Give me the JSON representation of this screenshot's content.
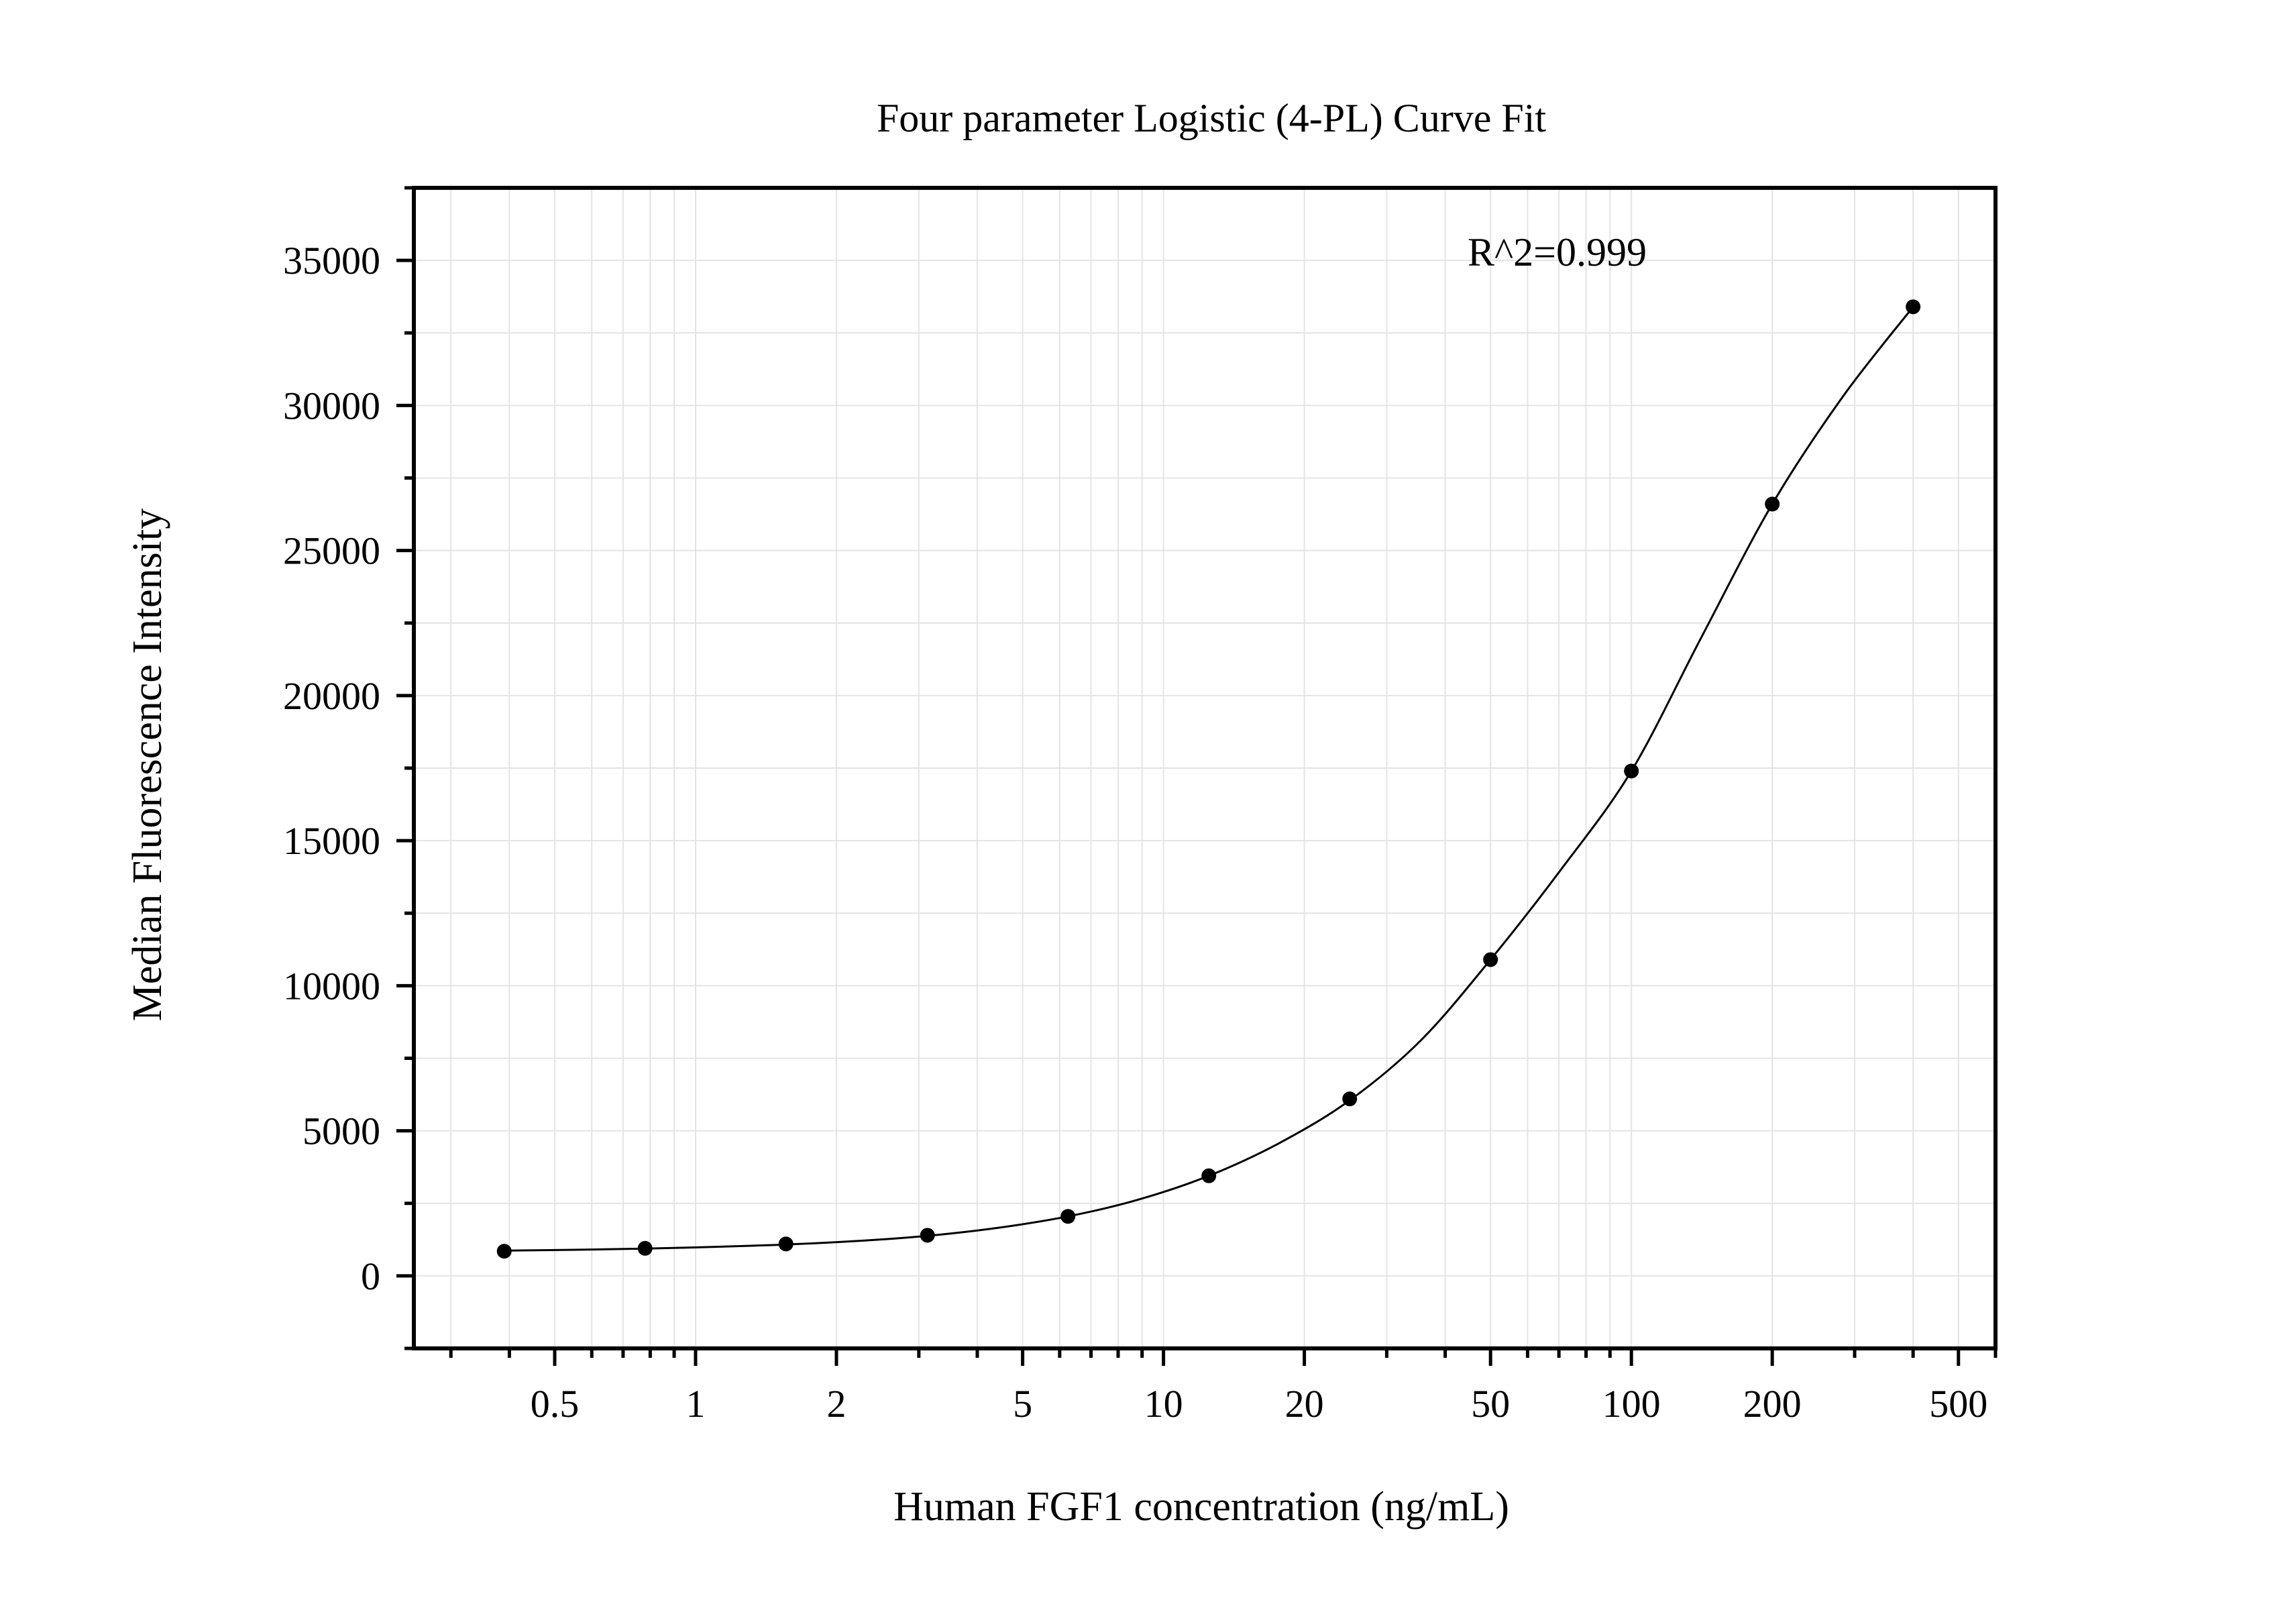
{
  "chart_data": {
    "type": "scatter",
    "title": "Four parameter Logistic (4-PL) Curve Fit",
    "xlabel": "Human FGF1 concentration (ng/mL)",
    "ylabel": "Median Fluorescence Intensity",
    "x_scale": "log",
    "xlim": [
      0.25,
      600
    ],
    "ylim": [
      -2500,
      37500
    ],
    "grid": true,
    "x_major_ticks": [
      0.5,
      1,
      2,
      5,
      10,
      20,
      50,
      100,
      200,
      500
    ],
    "x_tick_labels": [
      "0.5",
      "1",
      "2",
      "5",
      "10",
      "20",
      "50",
      "100",
      "200",
      "500"
    ],
    "y_major_ticks": [
      0,
      5000,
      10000,
      15000,
      20000,
      25000,
      30000,
      35000
    ],
    "y_tick_labels": [
      "0",
      "5000",
      "10000",
      "15000",
      "20000",
      "25000",
      "30000",
      "35000"
    ],
    "annotation": "R^2=0.999",
    "points": {
      "x": [
        0.39,
        0.78,
        1.56,
        3.13,
        6.25,
        12.5,
        25,
        50,
        100,
        200,
        400
      ],
      "y": [
        850,
        950,
        1100,
        1400,
        2050,
        3450,
        6100,
        10900,
        17400,
        26600,
        33400
      ]
    },
    "fit_curve": {
      "model": "4-PL",
      "x": [
        0.39,
        0.55,
        0.78,
        1.1,
        1.56,
        2.2,
        3.13,
        4.4,
        6.25,
        8.8,
        12.5,
        17.7,
        25,
        35.4,
        50,
        70.7,
        100,
        141,
        200,
        283,
        400
      ],
      "y": [
        870,
        900,
        940,
        1000,
        1080,
        1200,
        1380,
        1650,
        2050,
        2620,
        3450,
        4580,
        6050,
        8100,
        10900,
        14000,
        17400,
        22000,
        26600,
        30300,
        33400
      ]
    },
    "colors": {
      "points": "#000000",
      "curve": "#000000",
      "grid": "#e4e4e4",
      "frame": "#000000"
    }
  }
}
